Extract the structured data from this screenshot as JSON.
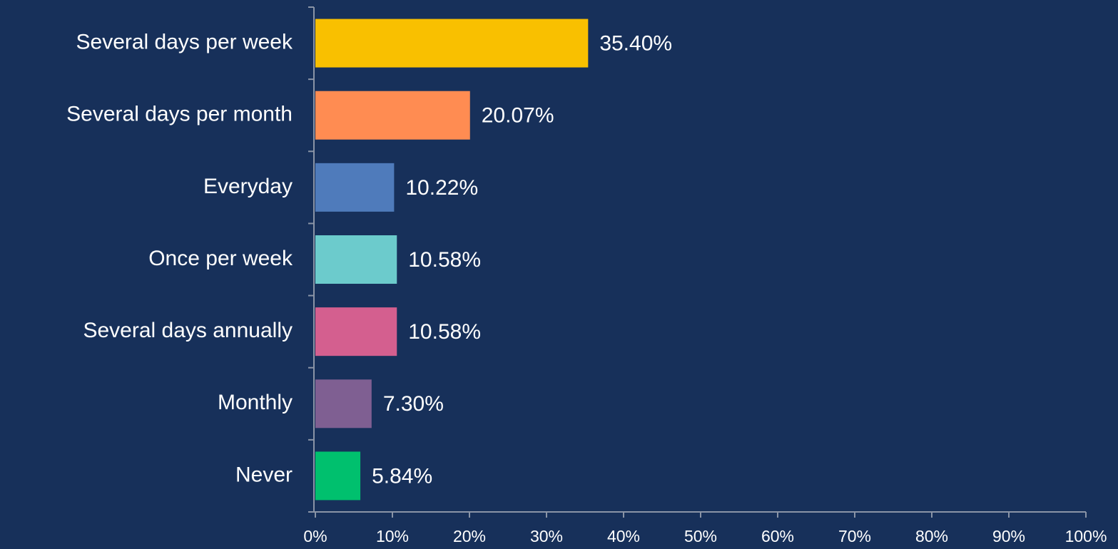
{
  "chart_data": {
    "type": "bar",
    "orientation": "horizontal",
    "categories": [
      "Several days per week",
      "Several days per month",
      "Everyday",
      "Once per week",
      "Several days annually",
      "Monthly",
      "Never"
    ],
    "values": [
      35.4,
      20.07,
      10.22,
      10.58,
      10.58,
      7.3,
      5.84
    ],
    "value_labels": [
      "35.40%",
      "20.07%",
      "10.22%",
      "10.58%",
      "10.58%",
      "7.30%",
      "5.84%"
    ],
    "colors": [
      "#f9c000",
      "#ff8c52",
      "#4f7bbb",
      "#6ccbcc",
      "#d45f8f",
      "#7f5f92",
      "#00c06e"
    ],
    "xlim": [
      0,
      100
    ],
    "xticks": [
      {
        "value": 0,
        "label": "0%"
      },
      {
        "value": 10,
        "label": "10%"
      },
      {
        "value": 20,
        "label": "20%"
      },
      {
        "value": 30,
        "label": "30%"
      },
      {
        "value": 40,
        "label": "40%"
      },
      {
        "value": 50,
        "label": "50%"
      },
      {
        "value": 60,
        "label": "60%"
      },
      {
        "value": 70,
        "label": "70%"
      },
      {
        "value": 80,
        "label": "80%"
      },
      {
        "value": 90,
        "label": "90%"
      },
      {
        "value": 100,
        "label": "100%"
      }
    ],
    "grid": false
  }
}
